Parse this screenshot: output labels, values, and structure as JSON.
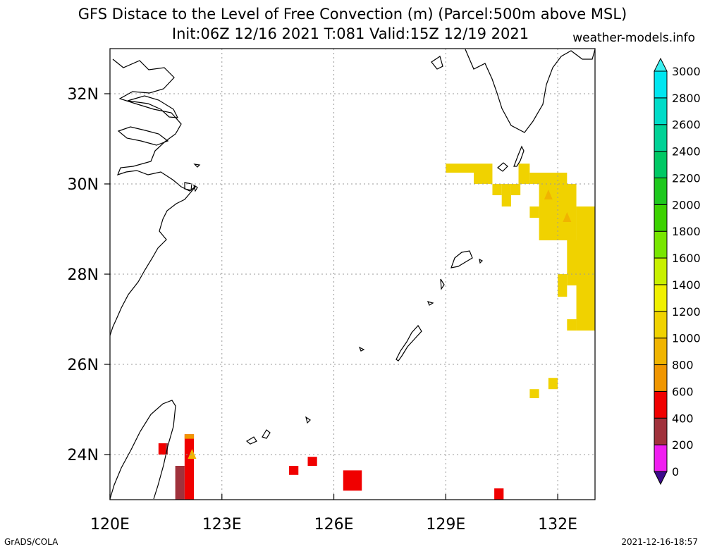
{
  "header": {
    "title_line1": "GFS Distace to the Level of Free Convection (m) (Parcel:500m above MSL)",
    "title_line2": "Init:06Z 12/16 2021 T:081 Valid:15Z 12/19 2021",
    "site": "weather-models.info"
  },
  "footer": {
    "credit": "GrADS/COLA",
    "timestamp": "2021-12-16-18:57"
  },
  "chart_data": {
    "type": "heatmap",
    "title": "GFS Distace to the Level of Free Convection (m) (Parcel:500m above MSL)",
    "subtitle": "Init:06Z 12/16 2021 T:081 Valid:15Z 12/19 2021",
    "x_ticks": [
      "120E",
      "123E",
      "126E",
      "129E",
      "132E"
    ],
    "y_ticks": [
      "24N",
      "26N",
      "28N",
      "30N",
      "32N"
    ],
    "lon_range": [
      120,
      133
    ],
    "lat_range": [
      23,
      33
    ],
    "grid": "dotted",
    "colorbar": {
      "labels": [
        "0",
        "200",
        "400",
        "600",
        "800",
        "1000",
        "1200",
        "1400",
        "1600",
        "1800",
        "2000",
        "2200",
        "2400",
        "2600",
        "2800",
        "3000"
      ],
      "colors": [
        "#3c0a8c",
        "#f01ef0",
        "#a0323c",
        "#f00000",
        "#f09600",
        "#f0b400",
        "#f0d200",
        "#f0f000",
        "#c8f000",
        "#78e600",
        "#3cd200",
        "#1ec81e",
        "#00c864",
        "#00d296",
        "#00dcc8",
        "#00e6f0",
        "#3cf0f0"
      ]
    },
    "cells": [
      {
        "lon": [
          129.0,
          129.75
        ],
        "lat": [
          30.25,
          30.45
        ],
        "value": 1000
      },
      {
        "lon": [
          129.75,
          130.25
        ],
        "lat": [
          30.0,
          30.45
        ],
        "value": 1000
      },
      {
        "lon": [
          130.25,
          130.5
        ],
        "lat": [
          29.75,
          30.0
        ],
        "value": 1000
      },
      {
        "lon": [
          130.5,
          130.75
        ],
        "lat": [
          29.5,
          30.0
        ],
        "value": 1000
      },
      {
        "lon": [
          130.75,
          131.0
        ],
        "lat": [
          29.75,
          30.0
        ],
        "value": 1000
      },
      {
        "lon": [
          130.95,
          131.25
        ],
        "lat": [
          30.0,
          30.45
        ],
        "value": 1000
      },
      {
        "lon": [
          131.25,
          132.25
        ],
        "lat": [
          30.0,
          30.25
        ],
        "value": 1000
      },
      {
        "lon": [
          131.5,
          132.0
        ],
        "lat": [
          29.25,
          30.0
        ],
        "value": 1000
      },
      {
        "lon": [
          131.25,
          131.5
        ],
        "lat": [
          29.25,
          29.5
        ],
        "value": 1000
      },
      {
        "lon": [
          132.0,
          132.5
        ],
        "lat": [
          29.25,
          30.0
        ],
        "value": 1000
      },
      {
        "lon": [
          131.5,
          132.5
        ],
        "lat": [
          28.75,
          29.25
        ],
        "value": 1000
      },
      {
        "lon": [
          132.5,
          133.0
        ],
        "lat": [
          28.75,
          29.5
        ],
        "value": 1000
      },
      {
        "lon": [
          132.25,
          133.0
        ],
        "lat": [
          27.75,
          28.75
        ],
        "value": 1000
      },
      {
        "lon": [
          132.0,
          132.25
        ],
        "lat": [
          27.5,
          28.0
        ],
        "value": 1000
      },
      {
        "lon": [
          132.5,
          133.0
        ],
        "lat": [
          27.0,
          27.75
        ],
        "value": 1000
      },
      {
        "lon": [
          132.25,
          132.5
        ],
        "lat": [
          26.75,
          27.0
        ],
        "value": 1000
      },
      {
        "lon": [
          132.5,
          133.0
        ],
        "lat": [
          26.75,
          27.0
        ],
        "value": 1000
      },
      {
        "lon": [
          131.75,
          132.0
        ],
        "lat": [
          25.45,
          25.7
        ],
        "value": 1000
      },
      {
        "lon": [
          131.25,
          131.5
        ],
        "lat": [
          25.25,
          25.45
        ],
        "value": 1000
      },
      {
        "lon": [
          121.3,
          121.5
        ],
        "lat": [
          24.0,
          24.25
        ],
        "value": 500
      },
      {
        "lon": [
          121.5,
          121.55
        ],
        "lat": [
          24.0,
          24.25
        ],
        "value": 300
      },
      {
        "lon": [
          121.75,
          122.0
        ],
        "lat": [
          22.95,
          23.75
        ],
        "value": 300
      },
      {
        "lon": [
          122.0,
          122.25
        ],
        "lat": [
          22.95,
          24.45
        ],
        "value": 500
      },
      {
        "lon": [
          122.0,
          122.25
        ],
        "lat": [
          24.35,
          24.45
        ],
        "value": 700
      },
      {
        "lon": [
          124.8,
          125.05
        ],
        "lat": [
          23.55,
          23.75
        ],
        "value": 500
      },
      {
        "lon": [
          125.3,
          125.55
        ],
        "lat": [
          23.75,
          23.95
        ],
        "value": 500
      },
      {
        "lon": [
          126.25,
          126.75
        ],
        "lat": [
          23.2,
          23.65
        ],
        "value": 500
      },
      {
        "lon": [
          130.3,
          130.55
        ],
        "lat": [
          22.95,
          23.25
        ],
        "value": 500
      }
    ],
    "hatch_glyphs": [
      {
        "lon": 131.75,
        "lat": 29.75,
        "value": 800
      },
      {
        "lon": 132.25,
        "lat": 29.25,
        "value": 800
      },
      {
        "lon": 122.2,
        "lat": 24.0,
        "value": 800
      }
    ]
  }
}
